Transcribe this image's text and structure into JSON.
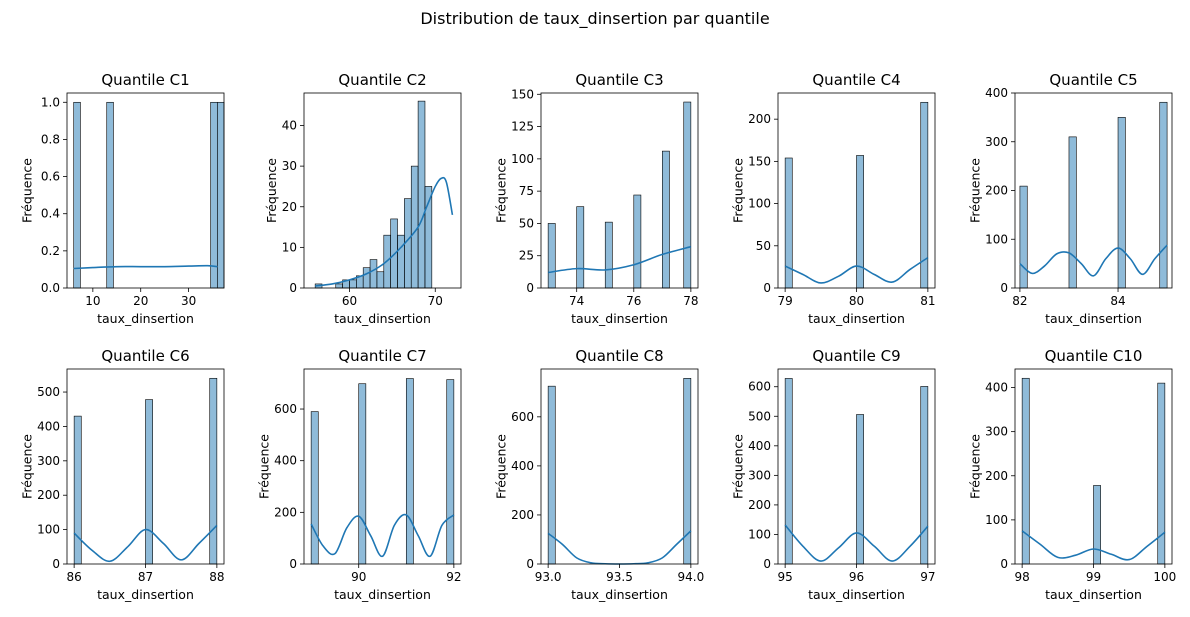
{
  "figure": {
    "suptitle": "Distribution de taux_dinsertion par quantile",
    "bar_color": "#1f77b4",
    "bar_fill_opacity": 0.5,
    "kde_color": "#1f77b4"
  },
  "chart_data": [
    {
      "type": "bar",
      "title": "Quantile C1",
      "xlabel": "taux_dinsertion",
      "ylabel": "Fréquence",
      "xlim": [
        4.6,
        37.4
      ],
      "ylim": [
        0,
        1.05
      ],
      "bin_width": 1.4,
      "xticks": [
        10,
        20,
        30
      ],
      "xtick_labels": [
        "10",
        "20",
        "30"
      ],
      "yticks": [
        0,
        0.2,
        0.4,
        0.6,
        0.8,
        1.0
      ],
      "ytick_labels": [
        "0.0",
        "0.2",
        "0.4",
        "0.6",
        "0.8",
        "1.0"
      ],
      "bins": [
        [
          6.0,
          1
        ],
        [
          12.9,
          1
        ],
        [
          34.6,
          1
        ],
        [
          36.0,
          1
        ]
      ],
      "kde": [
        [
          6,
          0.105
        ],
        [
          10,
          0.11
        ],
        [
          15,
          0.115
        ],
        [
          20,
          0.115
        ],
        [
          25,
          0.115
        ],
        [
          30,
          0.118
        ],
        [
          34,
          0.12
        ],
        [
          36,
          0.115
        ]
      ]
    },
    {
      "type": "bar",
      "title": "Quantile C2",
      "xlabel": "taux_dinsertion",
      "ylabel": "Fréquence",
      "xlim": [
        54.7,
        73.0
      ],
      "ylim": [
        0,
        48
      ],
      "bin_width": 0.8,
      "xticks": [
        60,
        70
      ],
      "xtick_labels": [
        "60",
        "70"
      ],
      "yticks": [
        0,
        10,
        20,
        30,
        40
      ],
      "ytick_labels": [
        "0",
        "10",
        "20",
        "30",
        "40"
      ],
      "bins": [
        [
          56.0,
          1
        ],
        [
          57.6,
          0
        ],
        [
          58.4,
          1
        ],
        [
          59.2,
          2
        ],
        [
          60.0,
          2
        ],
        [
          60.8,
          3
        ],
        [
          61.6,
          5
        ],
        [
          62.4,
          7
        ],
        [
          63.2,
          4
        ],
        [
          64.0,
          13
        ],
        [
          64.8,
          17
        ],
        [
          65.6,
          13
        ],
        [
          66.4,
          22
        ],
        [
          67.2,
          30
        ],
        [
          68.0,
          46
        ],
        [
          68.8,
          25
        ],
        [
          69.6,
          0
        ]
      ],
      "kde": [
        [
          56,
          0.5
        ],
        [
          58,
          1
        ],
        [
          60,
          2
        ],
        [
          62,
          3.5
        ],
        [
          64,
          6
        ],
        [
          66,
          10
        ],
        [
          68,
          15
        ],
        [
          69,
          20
        ],
        [
          70,
          25
        ],
        [
          70.7,
          27
        ],
        [
          71.3,
          26
        ],
        [
          72,
          18
        ]
      ]
    },
    {
      "type": "bar",
      "title": "Quantile C3",
      "xlabel": "taux_dinsertion",
      "ylabel": "Fréquence",
      "xlim": [
        72.75,
        78.25
      ],
      "ylim": [
        0,
        151
      ],
      "bin_width": 0.25,
      "xticks": [
        74,
        76,
        78
      ],
      "xtick_labels": [
        "74",
        "76",
        "78"
      ],
      "yticks": [
        0,
        25,
        50,
        75,
        100,
        125,
        150
      ],
      "ytick_labels": [
        "0",
        "25",
        "50",
        "75",
        "100",
        "125",
        "150"
      ],
      "bins": [
        [
          73.0,
          50
        ],
        [
          74.0,
          63
        ],
        [
          75.0,
          51
        ],
        [
          76.0,
          72
        ],
        [
          77.0,
          106
        ],
        [
          77.75,
          144
        ]
      ],
      "kde": [
        [
          73,
          12
        ],
        [
          74,
          15
        ],
        [
          75,
          14
        ],
        [
          76,
          18
        ],
        [
          77,
          26
        ],
        [
          78,
          32
        ]
      ]
    },
    {
      "type": "bar",
      "title": "Quantile C4",
      "xlabel": "taux_dinsertion",
      "ylabel": "Fréquence",
      "xlim": [
        78.9,
        81.1
      ],
      "ylim": [
        0,
        231
      ],
      "bin_width": 0.1,
      "xticks": [
        79,
        80,
        81
      ],
      "xtick_labels": [
        "79",
        "80",
        "81"
      ],
      "yticks": [
        0,
        50,
        100,
        150,
        200
      ],
      "ytick_labels": [
        "0",
        "50",
        "100",
        "150",
        "200"
      ],
      "bins": [
        [
          79.0,
          154
        ],
        [
          80.0,
          157
        ],
        [
          80.9,
          220
        ]
      ],
      "kde": [
        [
          79,
          26
        ],
        [
          79.25,
          16
        ],
        [
          79.5,
          6
        ],
        [
          79.75,
          14
        ],
        [
          80,
          26
        ],
        [
          80.25,
          16
        ],
        [
          80.5,
          7
        ],
        [
          80.75,
          22
        ],
        [
          81,
          36
        ]
      ]
    },
    {
      "type": "bar",
      "title": "Quantile C5",
      "xlabel": "taux_dinsertion",
      "ylabel": "Fréquence",
      "xlim": [
        81.9,
        85.1
      ],
      "ylim": [
        0,
        400
      ],
      "bin_width": 0.15,
      "xticks": [
        82,
        84
      ],
      "xtick_labels": [
        "82",
        "84"
      ],
      "yticks": [
        0,
        100,
        200,
        300,
        400
      ],
      "ytick_labels": [
        "0",
        "100",
        "200",
        "300",
        "400"
      ],
      "bins": [
        [
          82.0,
          209
        ],
        [
          83.0,
          310
        ],
        [
          84.0,
          350
        ],
        [
          84.85,
          381
        ]
      ],
      "kde": [
        [
          82,
          50
        ],
        [
          82.25,
          30
        ],
        [
          82.5,
          45
        ],
        [
          82.75,
          70
        ],
        [
          83,
          72
        ],
        [
          83.25,
          50
        ],
        [
          83.5,
          25
        ],
        [
          83.75,
          60
        ],
        [
          84,
          82
        ],
        [
          84.25,
          60
        ],
        [
          84.5,
          28
        ],
        [
          84.75,
          60
        ],
        [
          85,
          88
        ]
      ]
    },
    {
      "type": "bar",
      "title": "Quantile C6",
      "xlabel": "taux_dinsertion",
      "ylabel": "Fréquence",
      "xlim": [
        85.9,
        88.1
      ],
      "ylim": [
        0,
        567
      ],
      "bin_width": 0.1,
      "xticks": [
        86,
        87,
        88
      ],
      "xtick_labels": [
        "86",
        "87",
        "88"
      ],
      "yticks": [
        0,
        100,
        200,
        300,
        400,
        500
      ],
      "ytick_labels": [
        "0",
        "100",
        "200",
        "300",
        "400",
        "500"
      ],
      "bins": [
        [
          86.0,
          430
        ],
        [
          87.0,
          478
        ],
        [
          87.9,
          540
        ]
      ],
      "kde": [
        [
          86,
          90
        ],
        [
          86.25,
          40
        ],
        [
          86.5,
          8
        ],
        [
          86.75,
          50
        ],
        [
          87,
          100
        ],
        [
          87.25,
          60
        ],
        [
          87.5,
          12
        ],
        [
          87.75,
          60
        ],
        [
          88,
          112
        ]
      ]
    },
    {
      "type": "bar",
      "title": "Quantile C7",
      "xlabel": "taux_dinsertion",
      "ylabel": "Fréquence",
      "xlim": [
        88.85,
        92.15
      ],
      "ylim": [
        0,
        755
      ],
      "bin_width": 0.15,
      "xticks": [
        90,
        92
      ],
      "xtick_labels": [
        "90",
        "92"
      ],
      "yticks": [
        0,
        200,
        400,
        600
      ],
      "ytick_labels": [
        "0",
        "200",
        "400",
        "600"
      ],
      "bins": [
        [
          89.0,
          590
        ],
        [
          90.0,
          698
        ],
        [
          91.0,
          718
        ],
        [
          91.85,
          714
        ]
      ],
      "kde": [
        [
          89,
          155
        ],
        [
          89.25,
          70
        ],
        [
          89.5,
          40
        ],
        [
          89.75,
          140
        ],
        [
          90,
          185
        ],
        [
          90.25,
          110
        ],
        [
          90.5,
          30
        ],
        [
          90.75,
          150
        ],
        [
          91,
          190
        ],
        [
          91.25,
          110
        ],
        [
          91.5,
          30
        ],
        [
          91.75,
          150
        ],
        [
          92,
          190
        ]
      ]
    },
    {
      "type": "bar",
      "title": "Quantile C8",
      "xlabel": "taux_dinsertion",
      "ylabel": "Fréquence",
      "xlim": [
        92.95,
        94.05
      ],
      "ylim": [
        0,
        795
      ],
      "bin_width": 0.05,
      "xticks": [
        93.0,
        93.5,
        94.0
      ],
      "xtick_labels": [
        "93.0",
        "93.5",
        "94.0"
      ],
      "yticks": [
        0,
        200,
        400,
        600
      ],
      "ytick_labels": [
        "0",
        "200",
        "400",
        "600"
      ],
      "bins": [
        [
          93.0,
          725
        ],
        [
          93.95,
          757
        ]
      ],
      "kde": [
        [
          93,
          125
        ],
        [
          93.1,
          80
        ],
        [
          93.2,
          25
        ],
        [
          93.3,
          5
        ],
        [
          93.4,
          1
        ],
        [
          93.5,
          0
        ],
        [
          93.6,
          1
        ],
        [
          93.7,
          5
        ],
        [
          93.8,
          25
        ],
        [
          93.9,
          80
        ],
        [
          94,
          135
        ]
      ]
    },
    {
      "type": "bar",
      "title": "Quantile C9",
      "xlabel": "taux_dinsertion",
      "ylabel": "Fréquence",
      "xlim": [
        94.9,
        97.1
      ],
      "ylim": [
        0,
        660
      ],
      "bin_width": 0.1,
      "xticks": [
        95,
        96,
        97
      ],
      "xtick_labels": [
        "95",
        "96",
        "97"
      ],
      "yticks": [
        0,
        100,
        200,
        300,
        400,
        500,
        600
      ],
      "ytick_labels": [
        "0",
        "100",
        "200",
        "300",
        "400",
        "500",
        "600"
      ],
      "bins": [
        [
          95.0,
          628
        ],
        [
          96.0,
          506
        ],
        [
          96.9,
          601
        ]
      ],
      "kde": [
        [
          95,
          132
        ],
        [
          95.25,
          60
        ],
        [
          95.5,
          10
        ],
        [
          95.75,
          55
        ],
        [
          96,
          105
        ],
        [
          96.25,
          60
        ],
        [
          96.5,
          10
        ],
        [
          96.75,
          60
        ],
        [
          97,
          128
        ]
      ]
    },
    {
      "type": "bar",
      "title": "Quantile C10",
      "xlabel": "taux_dinsertion",
      "ylabel": "Fréquence",
      "xlim": [
        97.9,
        100.1
      ],
      "ylim": [
        0,
        442
      ],
      "bin_width": 0.1,
      "xticks": [
        98,
        99,
        100
      ],
      "xtick_labels": [
        "98",
        "99",
        "100"
      ],
      "yticks": [
        0,
        100,
        200,
        300,
        400
      ],
      "ytick_labels": [
        "0",
        "100",
        "200",
        "300",
        "400"
      ],
      "bins": [
        [
          98.0,
          421
        ],
        [
          99.0,
          178
        ],
        [
          99.9,
          410
        ]
      ],
      "kde": [
        [
          98,
          75
        ],
        [
          98.25,
          45
        ],
        [
          98.5,
          15
        ],
        [
          98.75,
          20
        ],
        [
          99,
          34
        ],
        [
          99.25,
          22
        ],
        [
          99.5,
          10
        ],
        [
          99.75,
          40
        ],
        [
          100,
          72
        ]
      ]
    }
  ]
}
